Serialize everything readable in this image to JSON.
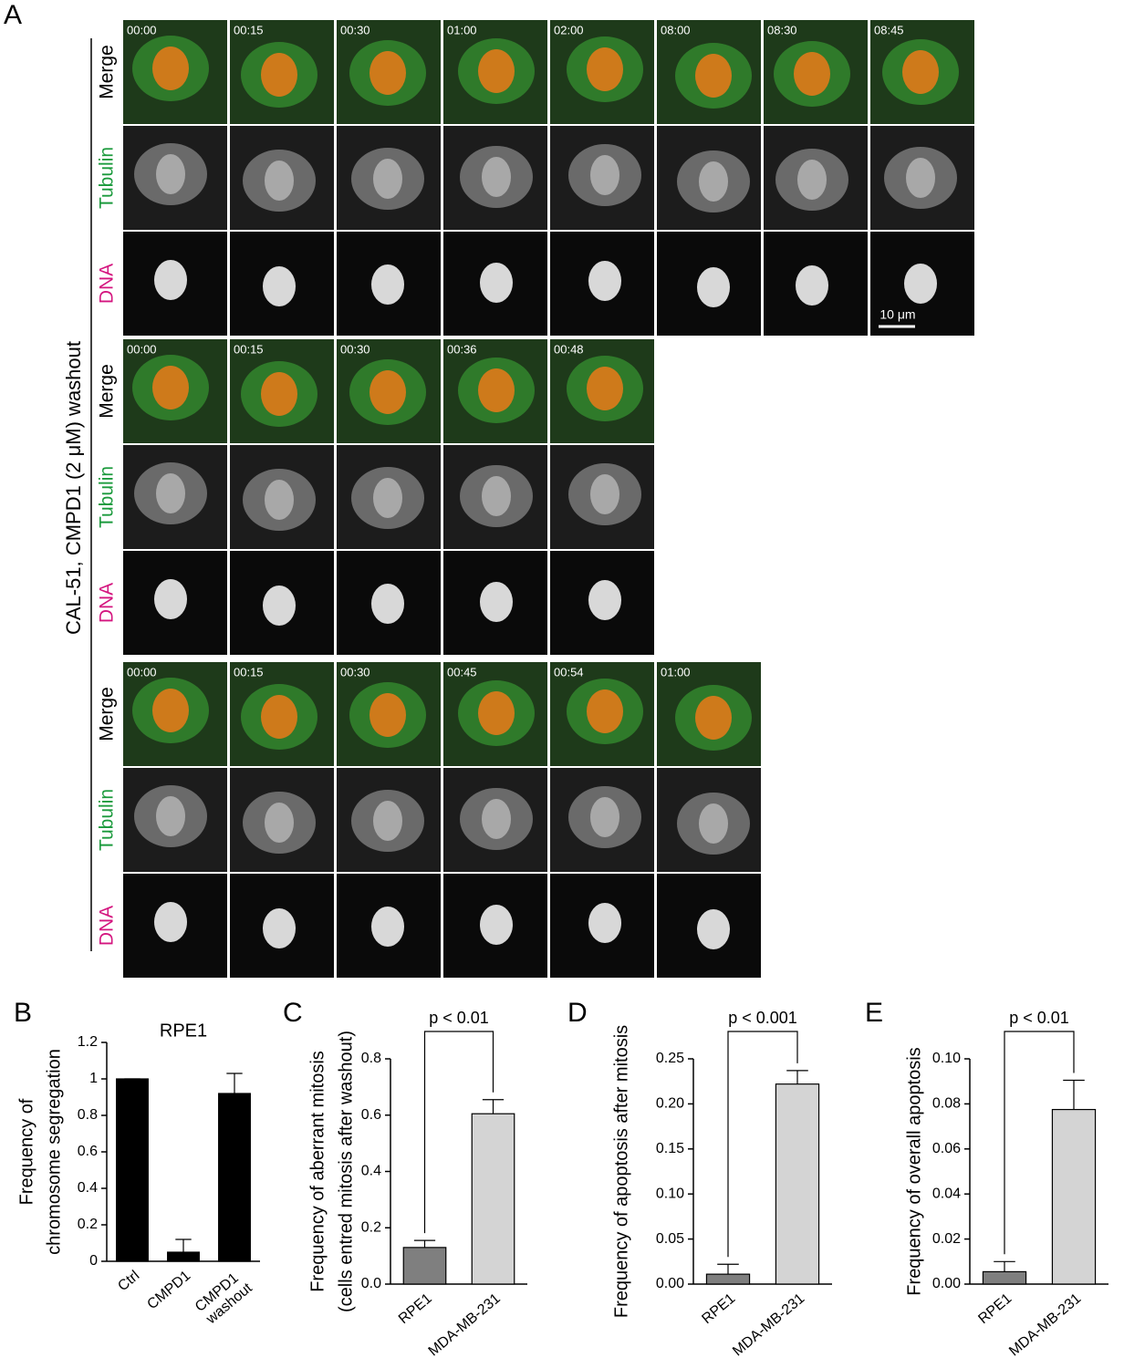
{
  "panel_a": {
    "letter": "A",
    "side_label": "CAL-51, CMPD1 (2 μM) washout",
    "scale_bar": "10 μm",
    "channels": [
      {
        "name": "Merge",
        "color": "#000000"
      },
      {
        "name": "Tubulin",
        "color": "#1b9a3c"
      },
      {
        "name": "DNA",
        "color": "#d4157f"
      }
    ],
    "groups": [
      {
        "times": [
          "00:00",
          "00:15",
          "00:30",
          "01:00",
          "02:00",
          "08:00",
          "08:30",
          "08:45"
        ]
      },
      {
        "times": [
          "00:00",
          "00:15",
          "00:30",
          "00:36",
          "00:48"
        ]
      },
      {
        "times": [
          "00:00",
          "00:15",
          "00:30",
          "00:45",
          "00:54",
          "01:00"
        ]
      }
    ]
  },
  "chart_data": [
    {
      "type": "bar",
      "letter": "B",
      "title": "RPE1",
      "ylabel": [
        "Frequency of",
        "chromosome segregation"
      ],
      "categories": [
        "Ctrl",
        "CMPD1",
        "CMPD1 washout"
      ],
      "values": [
        1.0,
        0.05,
        0.92
      ],
      "errors": [
        0,
        0.07,
        0.11
      ],
      "colors": [
        "#000000",
        "#000000",
        "#000000"
      ],
      "ylim": [
        0,
        1.2
      ],
      "yticks": [
        0,
        0.2,
        0.4,
        0.6,
        0.8,
        1,
        1.2
      ]
    },
    {
      "type": "bar",
      "letter": "C",
      "ylabel": [
        "Frequency of aberrant mitosis",
        "(cells entred mitosis after washout)"
      ],
      "annotation": "p < 0.01",
      "categories": [
        "RPE1",
        "MDA-MB-231"
      ],
      "values": [
        0.13,
        0.605
      ],
      "errors": [
        0.025,
        0.05
      ],
      "colors": [
        "#7f7f7f",
        "#d4d4d4"
      ],
      "ylim": [
        0,
        0.8
      ],
      "yticks": [
        {
          "value": 0,
          "label": "0.0"
        },
        0.2,
        0.4,
        0.6,
        0.8
      ]
    },
    {
      "type": "bar",
      "letter": "D",
      "ylabel": [
        "Frequency of apoptosis after mitosis"
      ],
      "annotation": "p < 0.001",
      "categories": [
        "RPE1",
        "MDA-MB-231"
      ],
      "values": [
        0.011,
        0.222
      ],
      "errors": [
        0.011,
        0.015
      ],
      "colors": [
        "#7f7f7f",
        "#d4d4d4"
      ],
      "ylim": [
        0,
        0.25
      ],
      "yticks": [
        {
          "value": 0,
          "label": "0.00"
        },
        0.05,
        {
          "value": 0.1,
          "label": "0.10"
        },
        0.15,
        {
          "value": 0.2,
          "label": "0.20"
        },
        0.25
      ]
    },
    {
      "type": "bar",
      "letter": "E",
      "ylabel": [
        "Frequency of overall apoptosis"
      ],
      "annotation": "p < 0.01",
      "categories": [
        "RPE1",
        "MDA-MB-231"
      ],
      "values": [
        0.0055,
        0.0775
      ],
      "errors": [
        0.0045,
        0.013
      ],
      "colors": [
        "#7f7f7f",
        "#d4d4d4"
      ],
      "ylim": [
        0,
        0.1
      ],
      "yticks": [
        {
          "value": 0,
          "label": "0.00"
        },
        {
          "value": 0.02,
          "label": "0.02"
        },
        {
          "value": 0.04,
          "label": "0.04"
        },
        {
          "value": 0.06,
          "label": "0.06"
        },
        {
          "value": 0.08,
          "label": "0.08"
        },
        {
          "value": 0.1,
          "label": "0.10"
        }
      ]
    }
  ]
}
